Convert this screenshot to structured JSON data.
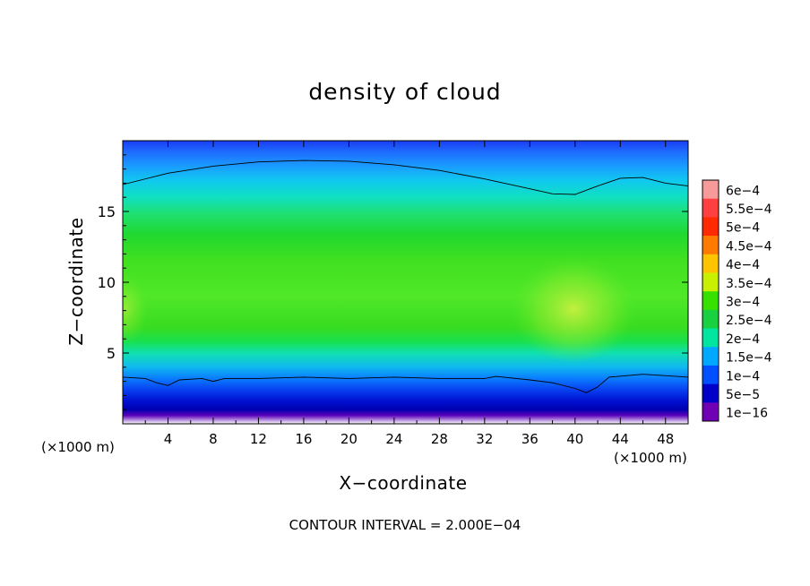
{
  "chart_data": {
    "type": "heatmap",
    "title": "density of cloud",
    "xlabel": "X−coordinate",
    "ylabel": "Z−coordinate",
    "x_unit": "(×1000 m)",
    "y_unit": "(×1000 m)",
    "xlim": [
      0,
      50
    ],
    "ylim": [
      0,
      20
    ],
    "x_ticks": [
      "4",
      "8",
      "12",
      "16",
      "20",
      "24",
      "28",
      "32",
      "36",
      "40",
      "44",
      "48"
    ],
    "y_ticks": [
      "5",
      "10",
      "15"
    ],
    "contour_interval": "CONTOUR INTERVAL = 2.000E−04",
    "colorbar": {
      "labels": [
        "6e−4",
        "5.5e−4",
        "5e−4",
        "4.5e−4",
        "4e−4",
        "3.5e−4",
        "3e−4",
        "2.5e−4",
        "2e−4",
        "1.5e−4",
        "1e−4",
        "5e−5",
        "1e−16"
      ],
      "colors": [
        "#f79a9a",
        "#ff4040",
        "#ff2a00",
        "#ff7a00",
        "#ffc400",
        "#c8f000",
        "#38e000",
        "#18d040",
        "#00e6a0",
        "#00a8ff",
        "#0050ff",
        "#0000c8",
        "#7000b4"
      ]
    },
    "contour_2e-4": {
      "upper": [
        [
          0,
          16.9
        ],
        [
          4,
          17.7
        ],
        [
          8,
          18.2
        ],
        [
          12,
          18.5
        ],
        [
          16,
          18.6
        ],
        [
          20,
          18.55
        ],
        [
          24,
          18.3
        ],
        [
          28,
          17.9
        ],
        [
          32,
          17.3
        ],
        [
          36,
          16.6
        ],
        [
          38,
          16.25
        ],
        [
          40,
          16.2
        ],
        [
          42,
          16.8
        ],
        [
          44,
          17.35
        ],
        [
          46,
          17.4
        ],
        [
          48,
          17.0
        ],
        [
          50,
          16.8
        ]
      ],
      "lower": [
        [
          0,
          3.3
        ],
        [
          2,
          3.2
        ],
        [
          3,
          2.9
        ],
        [
          4,
          2.7
        ],
        [
          5,
          3.1
        ],
        [
          7,
          3.2
        ],
        [
          8,
          3.0
        ],
        [
          9,
          3.2
        ],
        [
          12,
          3.2
        ],
        [
          16,
          3.3
        ],
        [
          20,
          3.2
        ],
        [
          24,
          3.3
        ],
        [
          28,
          3.2
        ],
        [
          32,
          3.2
        ],
        [
          33,
          3.35
        ],
        [
          36,
          3.1
        ],
        [
          38,
          2.9
        ],
        [
          40,
          2.5
        ],
        [
          41,
          2.2
        ],
        [
          42,
          2.6
        ],
        [
          43,
          3.3
        ],
        [
          46,
          3.5
        ],
        [
          50,
          3.3
        ]
      ]
    }
  }
}
